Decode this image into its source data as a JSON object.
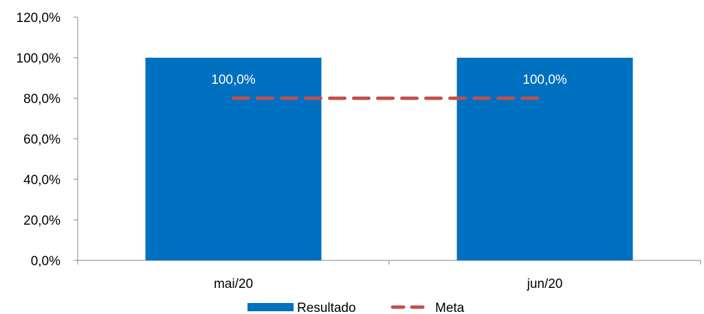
{
  "chart_data": {
    "type": "bar",
    "categories": [
      "mai/20",
      "jun/20"
    ],
    "series": [
      {
        "name": "Resultado",
        "type": "bar",
        "values": [
          100.0,
          100.0
        ],
        "data_labels": [
          "100,0%",
          "100,0%"
        ],
        "color": "#0070C0"
      },
      {
        "name": "Meta",
        "type": "line",
        "line_style": "dashed",
        "values": [
          80.0,
          80.0
        ],
        "color": "#C0504D"
      }
    ],
    "yticks": [
      "0,0%",
      "20,0%",
      "40,0%",
      "60,0%",
      "80,0%",
      "100,0%",
      "120,0%"
    ],
    "ylim": [
      0,
      120
    ],
    "grid": false,
    "legend": "bottom"
  }
}
